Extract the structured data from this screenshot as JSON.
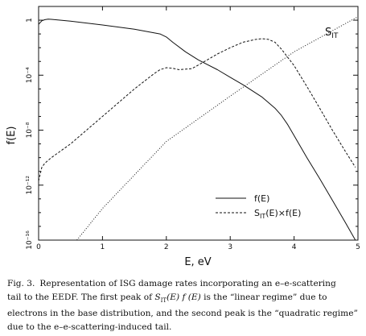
{
  "chart_data": {
    "type": "line",
    "xlabel": "E, eV",
    "ylabel": "f(E)",
    "xlim": [
      0,
      5
    ],
    "ylim_log10": [
      -16,
      1
    ],
    "yscale": "log",
    "x_ticks": [
      0,
      1,
      2,
      3,
      4,
      5
    ],
    "x_tick_labels": [
      "0",
      "1",
      "2",
      "3",
      "4",
      "5"
    ],
    "y_ticks": [
      1,
      0.0001,
      1e-08,
      1e-12,
      1e-16
    ],
    "y_tick_labels": [
      "1",
      "10⁻⁴",
      "10⁻⁸",
      "10⁻¹²",
      "10⁻¹⁶"
    ],
    "grid": false,
    "legend_position": "lower-right",
    "curve_label": {
      "main": "S",
      "sub": "IT"
    },
    "series": [
      {
        "name": "f(E)",
        "style": "solid",
        "x": [
          0.0,
          0.05,
          0.1,
          0.15,
          0.2,
          0.5,
          1.0,
          1.5,
          1.9,
          2.0,
          2.1,
          2.3,
          2.5,
          2.8,
          3.0,
          3.2,
          3.5,
          3.7,
          3.8,
          3.9,
          4.0,
          4.2,
          4.4,
          4.6,
          4.8,
          4.96
        ],
        "y": [
          0.5,
          0.9,
          1.1,
          1.2,
          1.15,
          0.85,
          0.45,
          0.22,
          0.1,
          0.06,
          0.025,
          0.005,
          0.0013,
          0.00025,
          7e-05,
          2e-05,
          2.5e-06,
          4e-07,
          1.2e-07,
          2.5e-08,
          4e-09,
          1e-10,
          3e-12,
          8e-14,
          2e-15,
          1e-16
        ]
      },
      {
        "name": "S_IT(E)×f(E)",
        "style": "dashed",
        "x": [
          0.0,
          0.05,
          0.1,
          0.2,
          0.5,
          1.0,
          1.5,
          1.8,
          1.9,
          2.0,
          2.1,
          2.2,
          2.4,
          2.6,
          2.8,
          3.0,
          3.2,
          3.4,
          3.5,
          3.6,
          3.7,
          3.8,
          4.0,
          4.2,
          4.4,
          4.6,
          4.8,
          4.96
        ],
        "y": [
          2e-12,
          2e-11,
          4e-11,
          1e-10,
          1e-09,
          1e-07,
          1e-05,
          0.00012,
          0.00025,
          0.00035,
          0.00032,
          0.00025,
          0.0003,
          0.001,
          0.0035,
          0.01,
          0.025,
          0.04,
          0.045,
          0.04,
          0.025,
          0.008,
          0.0005,
          1.5e-05,
          4e-07,
          1e-08,
          3e-10,
          2e-11
        ]
      },
      {
        "name": "S_IT",
        "style": "dotted",
        "x": [
          0.6,
          1.0,
          2.0,
          3.0,
          4.0,
          5.0
        ],
        "y": [
          1e-16,
          2e-14,
          1.5e-09,
          3e-06,
          0.005,
          1.8
        ]
      }
    ]
  },
  "legend": {
    "f_label": "f(E)",
    "sf_main": "S",
    "sf_sub": "IT",
    "sf_rest": "(E)×f(E)"
  },
  "caption": {
    "label": "Fig. 3.",
    "line1_rest": "Representation of ISG damage rates incorporating an e–e-scattering",
    "line2_a": "tail to the EEDF. The first peak of ",
    "line2_math": "S",
    "line2_math_sub": "IT",
    "line2_math_rest": "(E) f (E)",
    "line2_b": " is the “linear regime” due to",
    "line3": "electrons in the base distribution, and the second peak is the “quadratic regime”",
    "line4": "due to the e–e-scattering-induced tail."
  }
}
